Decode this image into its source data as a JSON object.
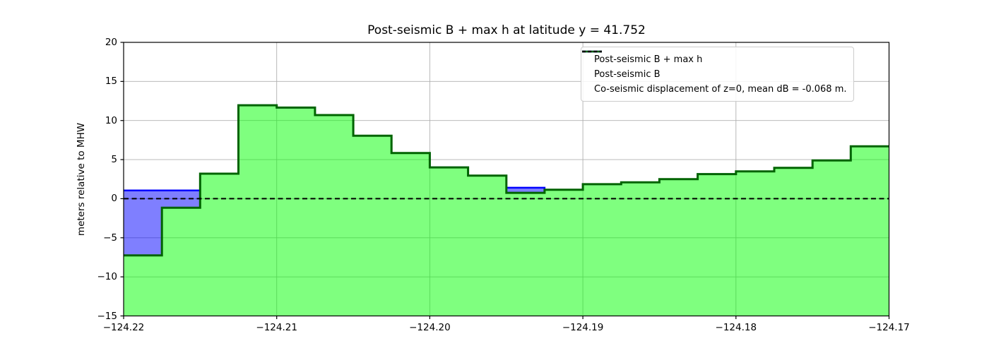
{
  "chart_data": {
    "type": "area",
    "title": "Post-seismic B + max h at latitude y = 41.752",
    "ylabel": "meters relative to MHW",
    "xlim": [
      -124.22,
      -124.17
    ],
    "ylim": [
      -15,
      20
    ],
    "grid": true,
    "x_start": -124.22,
    "cell_width": 0.0025,
    "xticks": {
      "values": [
        -124.22,
        -124.21,
        -124.2,
        -124.19,
        -124.18,
        -124.17
      ],
      "labels": [
        "−124.22",
        "−124.21",
        "−124.20",
        "−124.19",
        "−124.18",
        "−124.17"
      ]
    },
    "yticks": {
      "values": [
        20,
        15,
        10,
        5,
        0,
        -5,
        -10,
        -15
      ],
      "labels": [
        "20",
        "15",
        "10",
        "5",
        "0",
        "−5",
        "−10",
        "−15"
      ]
    },
    "series": [
      {
        "name": "Post-seismic B + max h",
        "line_color": "#0000ff",
        "fill_color": "rgba(0,0,255,0.5)",
        "values": [
          1.05,
          1.05,
          3.2,
          11.95,
          11.65,
          10.7,
          8.05,
          5.85,
          4.0,
          2.95,
          1.4,
          1.15,
          1.85,
          2.1,
          2.5,
          3.15,
          3.5,
          3.95,
          4.9,
          6.7
        ]
      },
      {
        "name": "Post-seismic B",
        "line_color": "#006400",
        "fill_color": "rgba(0,255,0,0.5)",
        "values": [
          -7.25,
          -1.15,
          3.2,
          11.95,
          11.65,
          10.7,
          8.05,
          5.85,
          4.0,
          2.95,
          0.75,
          1.15,
          1.85,
          2.1,
          2.5,
          3.15,
          3.5,
          3.95,
          4.9,
          6.7
        ]
      }
    ],
    "zero_line": {
      "y": 0,
      "color": "#000000",
      "style": "dashed"
    },
    "legend": {
      "position": "upper right",
      "entries": [
        {
          "label": "Post-seismic B + max h",
          "color": "#0000ff",
          "dashed": false
        },
        {
          "label": "Post-seismic B",
          "color": "#006400",
          "dashed": false
        },
        {
          "label": "Co-seismic displacement of z=0, mean dB = -0.068 m.",
          "color": "#000000",
          "dashed": true
        }
      ]
    },
    "colors": {
      "grid": "#b0b0b0",
      "spine": "#000000",
      "background": "#ffffff"
    }
  }
}
